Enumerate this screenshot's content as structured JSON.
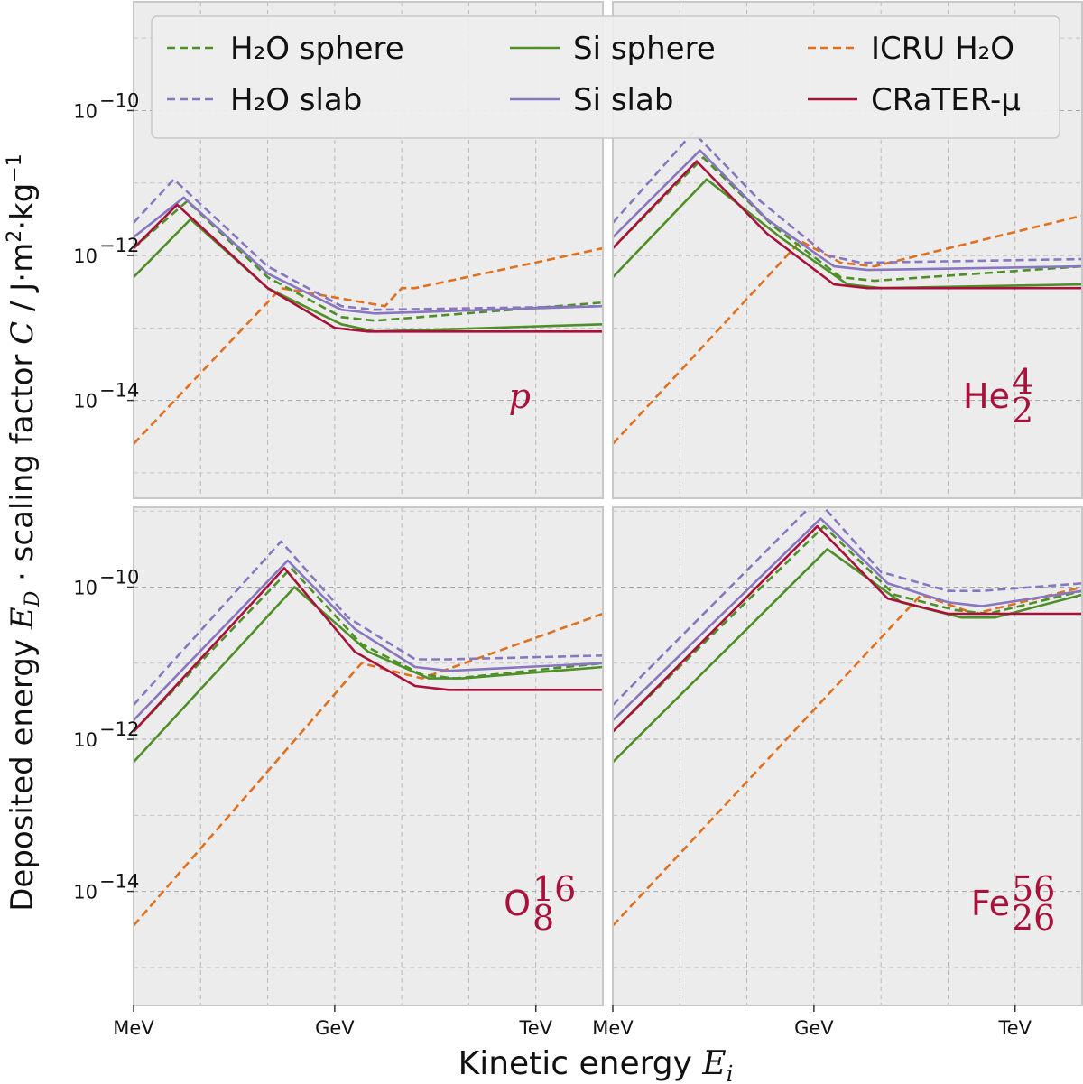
{
  "chart_data": {
    "type": "line",
    "xlabel": "Kinetic energy",
    "xlabel_symbol": "E",
    "xlabel_sub": "i",
    "ylabel": "Deposited energy E_D · scaling factor C / J·m²·kg⁻¹",
    "ylabel_parts": {
      "a": "Deposited energy ",
      "ed": "E",
      "ed_sub": "D",
      "dot": " · ",
      "b": "scaling factor ",
      "c": "C",
      "slash": " / ",
      "units": "J·m",
      "units_sup": "2",
      "units_mid": "·kg",
      "units_sup2": "−1"
    },
    "x_scale": "log10 (MeV)",
    "xlim": [
      0,
      7
    ],
    "x_ticks": [
      {
        "v": 0,
        "label": "MeV"
      },
      {
        "v": 3,
        "label": "GeV"
      },
      {
        "v": 6,
        "label": "TeV"
      }
    ],
    "y_scale": "log10 (J·m²·kg⁻¹)",
    "panel_ylims": {
      "top": [
        -15.35,
        -8.5
      ],
      "bottom": [
        -15.5,
        -8.95
      ]
    },
    "y_ticks": [
      {
        "v": -10,
        "label": "10",
        "exp": "−10"
      },
      {
        "v": -12,
        "label": "10",
        "exp": "−12"
      },
      {
        "v": -14,
        "label": "10",
        "exp": "−14"
      }
    ],
    "legend": [
      {
        "key": "h2o_sphere",
        "name": "H₂O sphere",
        "color": "#4e8f27",
        "dash": true
      },
      {
        "key": "si_sphere",
        "name": "Si sphere",
        "color": "#4e8f27",
        "dash": false
      },
      {
        "key": "icru",
        "name": "ICRU H₂O",
        "color": "#e0701d",
        "dash": true
      },
      {
        "key": "h2o_slab",
        "name": "H₂O slab",
        "color": "#8877c0",
        "dash": true
      },
      {
        "key": "si_slab",
        "name": "Si slab",
        "color": "#8877c0",
        "dash": false
      },
      {
        "key": "crater",
        "name": "CRaTER-μ",
        "color": "#a8123a",
        "dash": false
      }
    ],
    "panels": [
      {
        "particle": "p",
        "label_main": "p",
        "label_sup": "",
        "label_sub": "",
        "italic": true,
        "series": [
          {
            "key": "icru",
            "points": [
              [
                0,
                -14.6
              ],
              [
                2.2,
                -12.45
              ],
              [
                3.75,
                -12.7
              ],
              [
                4.0,
                -12.45
              ],
              [
                4.2,
                -12.45
              ],
              [
                7,
                -11.9
              ]
            ]
          },
          {
            "key": "h2o_slab",
            "points": [
              [
                0,
                -11.55
              ],
              [
                0.6,
                -10.95
              ],
              [
                2,
                -12.15
              ],
              [
                3.1,
                -12.7
              ],
              [
                3.6,
                -12.75
              ],
              [
                7,
                -12.7
              ]
            ]
          },
          {
            "key": "si_slab",
            "points": [
              [
                0,
                -11.75
              ],
              [
                0.75,
                -11.2
              ],
              [
                2,
                -12.25
              ],
              [
                3.1,
                -12.75
              ],
              [
                3.6,
                -12.8
              ],
              [
                7,
                -12.7
              ]
            ]
          },
          {
            "key": "h2o_sphere",
            "points": [
              [
                0,
                -11.9
              ],
              [
                0.8,
                -11.25
              ],
              [
                2,
                -12.3
              ],
              [
                3.1,
                -12.85
              ],
              [
                3.6,
                -12.9
              ],
              [
                7,
                -12.65
              ]
            ]
          },
          {
            "key": "si_sphere",
            "points": [
              [
                0,
                -12.3
              ],
              [
                0.85,
                -11.5
              ],
              [
                2,
                -12.45
              ],
              [
                3.1,
                -12.95
              ],
              [
                3.6,
                -13.05
              ],
              [
                7,
                -12.95
              ]
            ]
          },
          {
            "key": "crater",
            "points": [
              [
                0,
                -11.9
              ],
              [
                0.65,
                -11.3
              ],
              [
                2,
                -12.45
              ],
              [
                3.0,
                -13.0
              ],
              [
                3.5,
                -13.05
              ],
              [
                7,
                -13.05
              ]
            ]
          }
        ]
      },
      {
        "particle": "He",
        "label_main": "He",
        "label_sup": "4",
        "label_sub": "2",
        "italic": false,
        "series": [
          {
            "key": "icru",
            "points": [
              [
                0,
                -14.6
              ],
              [
                2.8,
                -11.8
              ],
              [
                3.4,
                -12.1
              ],
              [
                3.9,
                -12.15
              ],
              [
                7,
                -11.45
              ]
            ]
          },
          {
            "key": "h2o_slab",
            "points": [
              [
                0,
                -11.55
              ],
              [
                1.2,
                -10.3
              ],
              [
                2.2,
                -11.25
              ],
              [
                3.2,
                -12.0
              ],
              [
                3.7,
                -12.1
              ],
              [
                7,
                -12.05
              ]
            ]
          },
          {
            "key": "si_slab",
            "points": [
              [
                0,
                -11.75
              ],
              [
                1.3,
                -10.55
              ],
              [
                2.3,
                -11.5
              ],
              [
                3.3,
                -12.15
              ],
              [
                3.8,
                -12.2
              ],
              [
                7,
                -12.15
              ]
            ]
          },
          {
            "key": "h2o_sphere",
            "points": [
              [
                0,
                -11.9
              ],
              [
                1.35,
                -10.65
              ],
              [
                2.4,
                -11.6
              ],
              [
                3.4,
                -12.3
              ],
              [
                3.9,
                -12.35
              ],
              [
                7,
                -12.15
              ]
            ]
          },
          {
            "key": "si_sphere",
            "points": [
              [
                0,
                -12.3
              ],
              [
                1.4,
                -10.95
              ],
              [
                2.5,
                -11.75
              ],
              [
                3.5,
                -12.4
              ],
              [
                4.0,
                -12.45
              ],
              [
                7,
                -12.4
              ]
            ]
          },
          {
            "key": "crater",
            "points": [
              [
                0,
                -11.9
              ],
              [
                1.25,
                -10.7
              ],
              [
                2.3,
                -11.7
              ],
              [
                3.3,
                -12.4
              ],
              [
                3.8,
                -12.45
              ],
              [
                7,
                -12.45
              ]
            ]
          }
        ]
      },
      {
        "particle": "O",
        "label_main": "O",
        "label_sup": "16",
        "label_sub": "8",
        "italic": false,
        "series": [
          {
            "key": "icru",
            "points": [
              [
                0,
                -14.45
              ],
              [
                3.4,
                -11.0
              ],
              [
                4.3,
                -11.2
              ],
              [
                7,
                -10.35
              ]
            ]
          },
          {
            "key": "h2o_slab",
            "points": [
              [
                0,
                -11.55
              ],
              [
                2.2,
                -9.4
              ],
              [
                3.2,
                -10.4
              ],
              [
                4.2,
                -10.95
              ],
              [
                4.7,
                -10.95
              ],
              [
                7,
                -10.9
              ]
            ]
          },
          {
            "key": "si_slab",
            "points": [
              [
                0,
                -11.75
              ],
              [
                2.3,
                -9.65
              ],
              [
                3.3,
                -10.55
              ],
              [
                4.2,
                -11.05
              ],
              [
                4.7,
                -11.1
              ],
              [
                7,
                -11.0
              ]
            ]
          },
          {
            "key": "h2o_sphere",
            "points": [
              [
                0,
                -11.9
              ],
              [
                2.35,
                -9.75
              ],
              [
                3.4,
                -10.75
              ],
              [
                4.3,
                -11.15
              ],
              [
                4.8,
                -11.2
              ],
              [
                7,
                -11.0
              ]
            ]
          },
          {
            "key": "si_sphere",
            "points": [
              [
                0,
                -12.3
              ],
              [
                2.4,
                -10.0
              ],
              [
                3.5,
                -10.85
              ],
              [
                4.4,
                -11.2
              ],
              [
                4.9,
                -11.2
              ],
              [
                7,
                -11.05
              ]
            ]
          },
          {
            "key": "crater",
            "points": [
              [
                0,
                -11.9
              ],
              [
                2.25,
                -9.75
              ],
              [
                3.3,
                -10.85
              ],
              [
                4.2,
                -11.3
              ],
              [
                4.7,
                -11.35
              ],
              [
                7,
                -11.35
              ]
            ]
          }
        ]
      },
      {
        "particle": "Fe",
        "label_main": "Fe",
        "label_sup": "56",
        "label_sub": "26",
        "italic": false,
        "series": [
          {
            "key": "icru",
            "points": [
              [
                0,
                -14.45
              ],
              [
                4.6,
                -10.1
              ],
              [
                5.4,
                -10.35
              ],
              [
                7,
                -10.0
              ]
            ]
          },
          {
            "key": "h2o_slab",
            "points": [
              [
                0,
                -11.55
              ],
              [
                3.05,
                -8.85
              ],
              [
                4.0,
                -9.8
              ],
              [
                5.0,
                -10.05
              ],
              [
                5.5,
                -10.05
              ],
              [
                7,
                -9.95
              ]
            ]
          },
          {
            "key": "si_slab",
            "points": [
              [
                0,
                -11.75
              ],
              [
                3.1,
                -9.1
              ],
              [
                4.1,
                -9.95
              ],
              [
                5.0,
                -10.2
              ],
              [
                5.5,
                -10.25
              ],
              [
                7,
                -10.05
              ]
            ]
          },
          {
            "key": "h2o_sphere",
            "points": [
              [
                0,
                -11.9
              ],
              [
                3.15,
                -9.2
              ],
              [
                4.2,
                -10.1
              ],
              [
                5.1,
                -10.3
              ],
              [
                5.6,
                -10.35
              ],
              [
                7,
                -10.05
              ]
            ]
          },
          {
            "key": "si_sphere",
            "points": [
              [
                0,
                -12.3
              ],
              [
                3.2,
                -9.5
              ],
              [
                4.3,
                -10.2
              ],
              [
                5.2,
                -10.4
              ],
              [
                5.7,
                -10.4
              ],
              [
                7,
                -10.1
              ]
            ]
          },
          {
            "key": "crater",
            "points": [
              [
                0,
                -11.9
              ],
              [
                3.05,
                -9.2
              ],
              [
                4.1,
                -10.15
              ],
              [
                5.0,
                -10.35
              ],
              [
                5.5,
                -10.35
              ],
              [
                7,
                -10.35
              ]
            ]
          }
        ]
      }
    ]
  }
}
